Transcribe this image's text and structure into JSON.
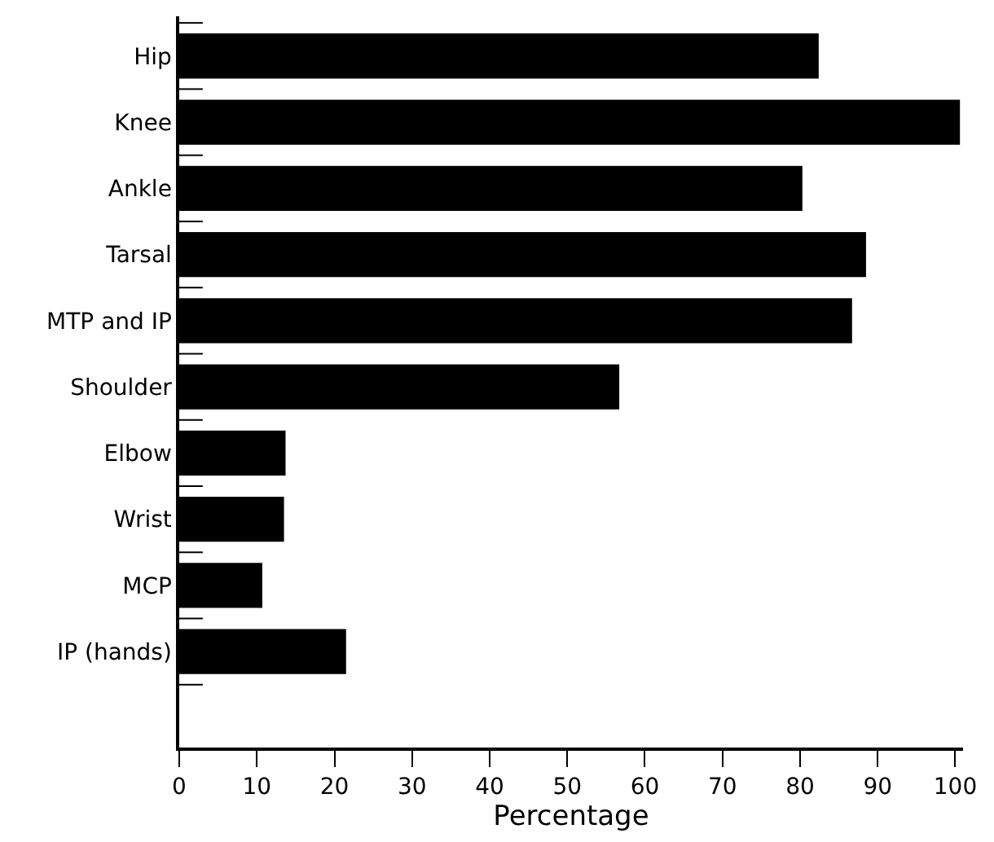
{
  "chart_data": {
    "type": "bar",
    "orientation": "horizontal",
    "xlabel": "Percentage",
    "categories": [
      "Hip",
      "Knee",
      "Ankle",
      "Tarsal",
      "MTP and IP",
      "Shoulder",
      "Elbow",
      "Wrist",
      "MCP",
      "IP (hands)"
    ],
    "values": [
      82.4,
      100.6,
      80.3,
      88.5,
      86.7,
      56.7,
      13.7,
      13.5,
      10.7,
      21.5
    ],
    "color": "#000000",
    "xlim": [
      0,
      101
    ],
    "xticks": [
      0,
      10,
      20,
      30,
      40,
      50,
      60,
      70,
      80,
      90,
      100
    ],
    "legend": false
  }
}
